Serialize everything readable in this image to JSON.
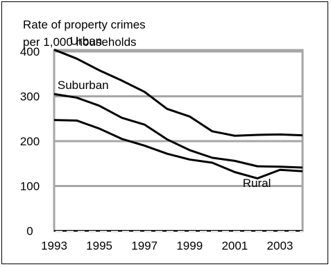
{
  "chart_data": {
    "type": "line",
    "ylabel_lines": [
      "Rate of property crimes",
      "per 1,000 households"
    ],
    "xlabel": "",
    "x": [
      1993,
      1994,
      1995,
      1996,
      1997,
      1998,
      1999,
      2000,
      2001,
      2002,
      2003,
      2004
    ],
    "xticks": [
      "1993",
      "1995",
      "1997",
      "1999",
      "2001",
      "2003"
    ],
    "yticks": [
      "0",
      "100",
      "200",
      "300",
      "400"
    ],
    "xlim": [
      1993,
      2004
    ],
    "ylim": [
      0,
      400
    ],
    "grid": true,
    "series": [
      {
        "name": "Urban",
        "values": [
          404,
          384,
          358,
          335,
          310,
          272,
          255,
          222,
          212,
          214,
          215,
          213
        ]
      },
      {
        "name": "Suburban",
        "values": [
          305,
          297,
          279,
          252,
          237,
          204,
          180,
          163,
          156,
          144,
          143,
          141
        ]
      },
      {
        "name": "Rural",
        "values": [
          247,
          246,
          228,
          205,
          190,
          172,
          159,
          152,
          131,
          117,
          136,
          133
        ]
      }
    ],
    "colors": {
      "line": "#000000",
      "plot_border": "#a6a6a6",
      "grid": "#a6a6a6",
      "background": "#ffffff"
    }
  }
}
